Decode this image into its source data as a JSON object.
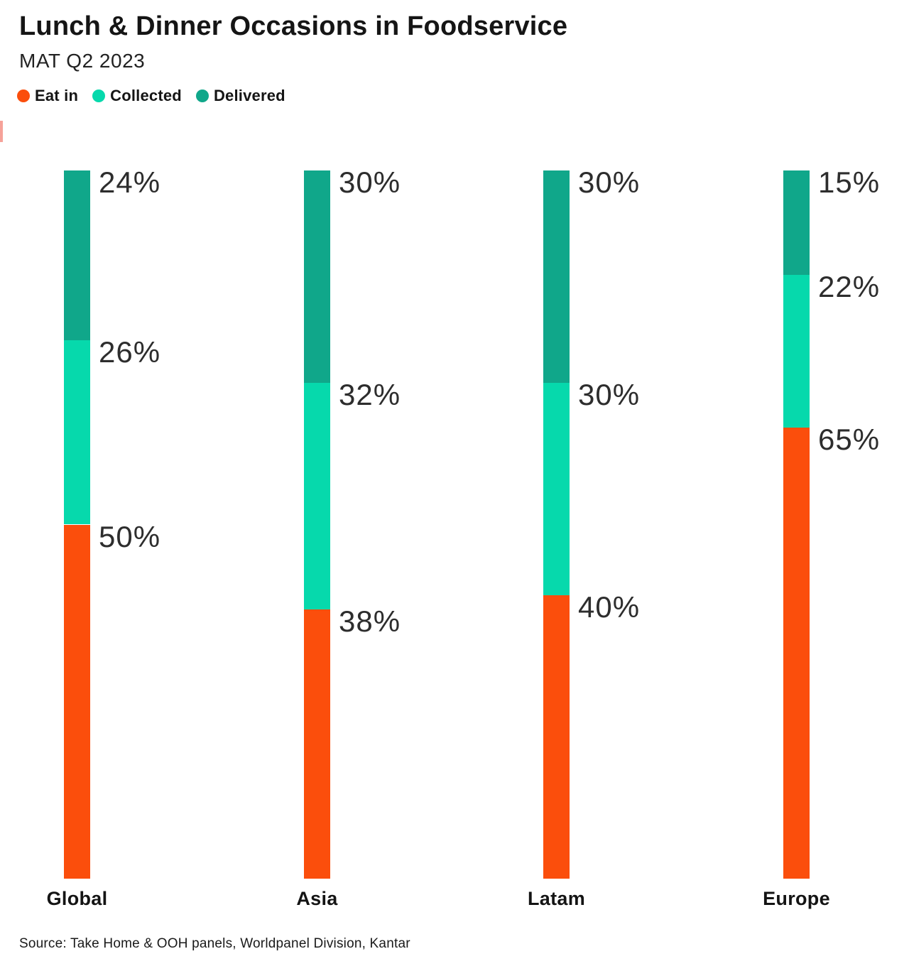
{
  "header": {
    "title": "Lunch & Dinner Occasions in Foodservice",
    "subtitle": "MAT Q2 2023"
  },
  "legend": {
    "position": "top-left",
    "items": [
      {
        "label": "Eat in",
        "color": "#FB4E0C"
      },
      {
        "label": "Collected",
        "color": "#06D9AC"
      },
      {
        "label": "Delivered",
        "color": "#10A78A"
      }
    ]
  },
  "footer": {
    "source": "Source: Take Home & OOH panels, Worldpanel Division, Kantar"
  },
  "chart_data": {
    "type": "bar",
    "stacked": true,
    "orientation": "vertical",
    "title": "Lunch & Dinner Occasions in Foodservice",
    "subtitle": "MAT Q2 2023",
    "categories": [
      "Global",
      "Asia",
      "Latam",
      "Europe"
    ],
    "series": [
      {
        "name": "Eat in",
        "color": "#FB4E0C",
        "values": [
          50,
          38,
          40,
          65
        ]
      },
      {
        "name": "Collected",
        "color": "#06D9AC",
        "values": [
          26,
          32,
          30,
          22
        ]
      },
      {
        "name": "Delivered",
        "color": "#10A78A",
        "values": [
          24,
          30,
          30,
          15
        ]
      }
    ],
    "segment_order_top_to_bottom": [
      "Delivered",
      "Collected",
      "Eat in"
    ],
    "value_suffix": "%",
    "data_labels": "right-of-segment-top",
    "axes": "none",
    "grid": false,
    "source": "Source: Take Home & OOH panels, Worldpanel Division, Kantar"
  }
}
